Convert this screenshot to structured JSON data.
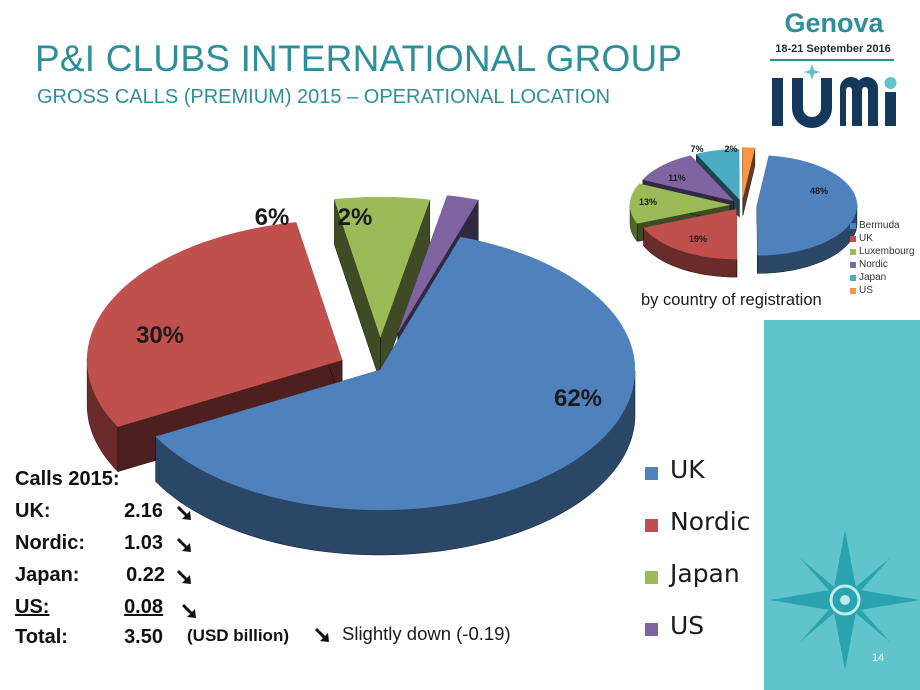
{
  "header": {
    "title": "P&I CLUBS INTERNATIONAL GROUP",
    "subtitle": "GROSS CALLS (PREMIUM) 2015 – OPERATIONAL LOCATION"
  },
  "logo": {
    "city": "Genova",
    "dates": "18-21 September 2016",
    "brand": "IUMI"
  },
  "colors": {
    "title": "#2e8f9a",
    "uk": "#4f81bd",
    "nordic": "#c0504d",
    "japan": "#9bbb59",
    "us": "#8064a2",
    "bermuda": "#4f81bd",
    "luxembourg": "#9bbb59",
    "small_japan": "#4bacc6",
    "small_us": "#f79646",
    "panel": "#5fc4cc"
  },
  "chart_data": [
    {
      "type": "pie",
      "categories": [
        "UK",
        "Nordic",
        "Japan",
        "US"
      ],
      "values": [
        62,
        30,
        6,
        2
      ],
      "labels": [
        "62%",
        "30%",
        "6%",
        "2%"
      ],
      "legend": [
        "UK",
        "Nordic",
        "Japan",
        "US"
      ],
      "style": "3d-exploded"
    },
    {
      "type": "pie",
      "categories": [
        "Bermuda",
        "UK",
        "Luxembourg",
        "Nordic",
        "Japan",
        "US"
      ],
      "values": [
        48,
        19,
        13,
        11,
        7,
        2
      ],
      "labels": [
        "48%",
        "19%",
        "13%",
        "11%",
        "7%",
        "2%"
      ],
      "legend": [
        "Bermuda",
        "UK",
        "Luxembourg",
        "Nordic",
        "Japan",
        "US"
      ],
      "caption": "by country of registration",
      "style": "3d-exploded"
    }
  ],
  "calls": {
    "title": "Calls 2015:",
    "rows": [
      {
        "label": "UK:",
        "value": "2.16",
        "trend": "down"
      },
      {
        "label": "Nordic:",
        "value": "1.03",
        "trend": "down"
      },
      {
        "label": "Japan:",
        "value": "0.22",
        "trend": "down"
      },
      {
        "label": "US:",
        "value": "0.08",
        "trend": "down"
      }
    ],
    "total_label": "Total:",
    "total_value": "3.50",
    "total_unit": "(USD billion)",
    "total_note": "Slightly down (-0.19)"
  },
  "page_number": "14"
}
